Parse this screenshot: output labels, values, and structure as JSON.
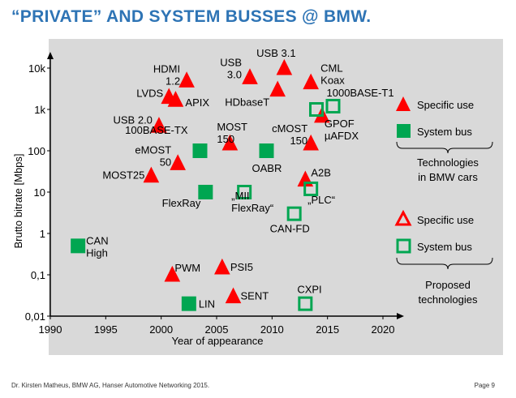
{
  "title": "“PRIVATE” AND SYSTEM BUSSES @ BMW.",
  "footer": {
    "left": "Dr. Kirsten Matheus,  BMW AG, Hanser Automotive Networking 2015.",
    "right": "Page 9"
  },
  "colors": {
    "red": "#ff0000",
    "green": "#00a651",
    "title": "#2e74b5",
    "plot_bg": "#d9d9d9"
  },
  "legend": {
    "specific_use": "Specific use",
    "system_bus": "System bus",
    "bmw_caption_1": "Technologies",
    "bmw_caption_2": "in BMW cars",
    "proposed_specific_use": "Specific use",
    "proposed_system_bus": "System bus",
    "proposed_caption_1": "Proposed",
    "proposed_caption_2": "technologies"
  },
  "chart_data": {
    "type": "scatter",
    "xlabel": "Year of appearance",
    "ylabel": "Brutto bitrate [Mbps]",
    "xlim": [
      1990,
      2020
    ],
    "ylim": [
      0.01,
      10000
    ],
    "y_scale": "log",
    "x_ticks": [
      "1990",
      "1995",
      "2000",
      "2005",
      "2010",
      "2015",
      "2020"
    ],
    "y_ticks": [
      "0,01",
      "0,1",
      "1",
      "10",
      "100",
      "1k",
      "10k"
    ],
    "grid": false,
    "series": [
      {
        "name": "Specific use",
        "category": "BMW",
        "points": [
          {
            "x": 2000.7,
            "y": 2000,
            "label": "LVDS"
          },
          {
            "x": 2001.3,
            "y": 1700,
            "label": "APIX"
          },
          {
            "x": 2002.3,
            "y": 5000,
            "label": "HDMI\n1.2"
          },
          {
            "x": 1999.8,
            "y": 400,
            "label": "USB 2.0"
          },
          {
            "x": 2001.5,
            "y": 50,
            "label": "eMOST\n50"
          },
          {
            "x": 1999.1,
            "y": 25,
            "label": "MOST25"
          },
          {
            "x": 2006.2,
            "y": 150,
            "label": "MOST\n150"
          },
          {
            "x": 2008.0,
            "y": 6000,
            "label": "USB\n3.0"
          },
          {
            "x": 2010.5,
            "y": 3000,
            "label": "HDbaseT"
          },
          {
            "x": 2011.1,
            "y": 10000,
            "label": "USB 3.1"
          },
          {
            "x": 2013.5,
            "y": 4500,
            "label": "CML\nKoax"
          },
          {
            "x": 2013.5,
            "y": 150,
            "label": "cMOST\n150"
          },
          {
            "x": 2014.5,
            "y": 700,
            "label": "GPOF\nµAFDX"
          },
          {
            "x": 2013.0,
            "y": 20,
            "label": "A2B"
          },
          {
            "x": 2001.0,
            "y": 0.1,
            "label": "PWM"
          },
          {
            "x": 2005.5,
            "y": 0.15,
            "label": "PSI5"
          },
          {
            "x": 2006.5,
            "y": 0.03,
            "label": "SENT"
          }
        ]
      },
      {
        "name": "System bus",
        "category": "BMW",
        "points": [
          {
            "x": 1992.5,
            "y": 0.5,
            "label": "CAN\nHigh"
          },
          {
            "x": 2003.5,
            "y": 100,
            "label": "100BASE-TX"
          },
          {
            "x": 2004.0,
            "y": 10,
            "label": "FlexRay"
          },
          {
            "x": 2009.5,
            "y": 100,
            "label": "OABR"
          },
          {
            "x": 2002.5,
            "y": 0.02,
            "label": "LIN"
          }
        ]
      },
      {
        "name": "System bus",
        "category": "Proposed",
        "points": [
          {
            "x": 2007.5,
            "y": 10,
            "label": "„MII\nFlexRay“"
          },
          {
            "x": 2013.5,
            "y": 12,
            "label": "„PLC“"
          },
          {
            "x": 2012.0,
            "y": 3,
            "label": "CAN-FD"
          },
          {
            "x": 2014.0,
            "y": 1000,
            "label": ""
          },
          {
            "x": 2015.5,
            "y": 1200,
            "label": "1000BASE-T1"
          },
          {
            "x": 2013.0,
            "y": 0.02,
            "label": "CXPI"
          }
        ]
      }
    ]
  }
}
